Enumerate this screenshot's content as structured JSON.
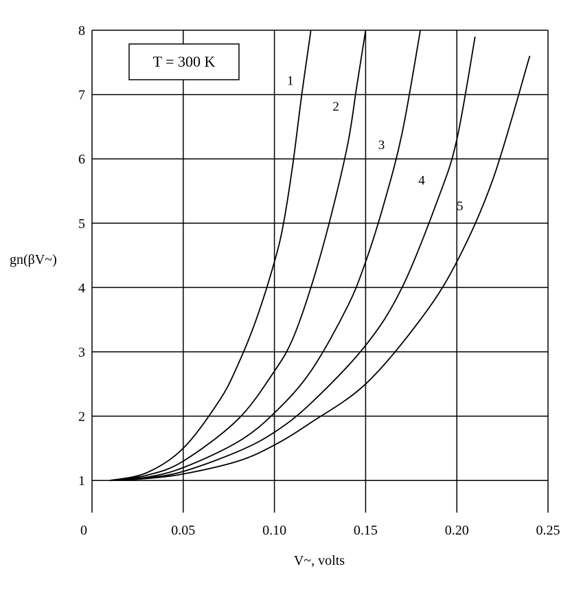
{
  "chart_data": {
    "type": "line",
    "title": "",
    "xlabel": "V~, volts",
    "ylabel": "gn(βV~)",
    "xlim": [
      0,
      0.25
    ],
    "ylim": [
      0.5,
      8
    ],
    "grid": true,
    "x_ticks": [
      "0",
      "0.05",
      "0.10",
      "0.15",
      "0.20",
      "0.25"
    ],
    "y_ticks": [
      "1",
      "2",
      "3",
      "4",
      "5",
      "6",
      "7",
      "8"
    ],
    "annotation": "T = 300 K",
    "series": [
      {
        "name": "1",
        "x": [
          0.01,
          0.03,
          0.05,
          0.07,
          0.08,
          0.09,
          0.1,
          0.105,
          0.11,
          0.115,
          0.12
        ],
        "y": [
          1.0,
          1.12,
          1.5,
          2.25,
          2.8,
          3.5,
          4.4,
          5.0,
          5.9,
          7.0,
          8.0
        ]
      },
      {
        "name": "2",
        "x": [
          0.01,
          0.03,
          0.05,
          0.08,
          0.1,
          0.11,
          0.12,
          0.13,
          0.14,
          0.145,
          0.15
        ],
        "y": [
          1.0,
          1.08,
          1.3,
          1.95,
          2.7,
          3.2,
          4.0,
          5.0,
          6.2,
          7.1,
          8.0
        ]
      },
      {
        "name": "3",
        "x": [
          0.01,
          0.03,
          0.05,
          0.08,
          0.1,
          0.12,
          0.14,
          0.15,
          0.16,
          0.17,
          0.18
        ],
        "y": [
          1.0,
          1.05,
          1.2,
          1.6,
          2.05,
          2.7,
          3.7,
          4.4,
          5.3,
          6.4,
          8.0
        ]
      },
      {
        "name": "4",
        "x": [
          0.01,
          0.03,
          0.05,
          0.08,
          0.1,
          0.12,
          0.15,
          0.17,
          0.19,
          0.2,
          0.21
        ],
        "y": [
          1.0,
          1.04,
          1.14,
          1.45,
          1.75,
          2.2,
          3.1,
          4.0,
          5.4,
          6.3,
          7.9
        ]
      },
      {
        "name": "5",
        "x": [
          0.01,
          0.03,
          0.05,
          0.08,
          0.1,
          0.12,
          0.15,
          0.18,
          0.2,
          0.22,
          0.24
        ],
        "y": [
          1.0,
          1.03,
          1.1,
          1.3,
          1.55,
          1.9,
          2.5,
          3.5,
          4.4,
          5.7,
          7.6
        ]
      }
    ]
  }
}
